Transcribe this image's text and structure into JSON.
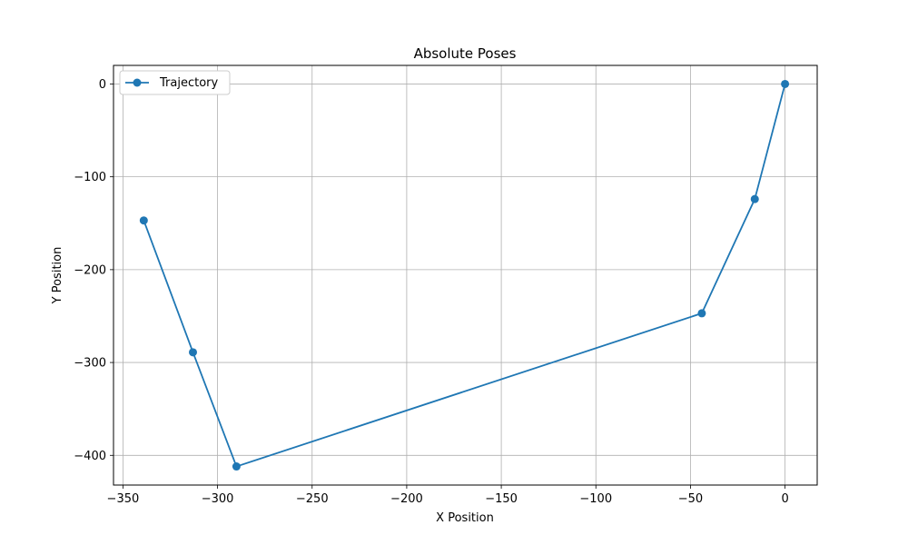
{
  "chart_data": {
    "type": "line",
    "title": "Absolute Poses",
    "xlabel": "X Position",
    "ylabel": "Y Position",
    "xlim": [
      -355,
      17
    ],
    "ylim": [
      -432,
      20
    ],
    "xticks": [
      -350,
      -300,
      -250,
      -200,
      -150,
      -100,
      -50,
      0
    ],
    "yticks": [
      0,
      -100,
      -200,
      -300,
      -400
    ],
    "grid": true,
    "legend_position": "upper-left",
    "series": [
      {
        "name": "Trajectory",
        "color": "#1f77b4",
        "marker": "circle",
        "x": [
          0,
          -16,
          -44,
          -290,
          -313,
          -339
        ],
        "y": [
          0,
          -124,
          -247,
          -412,
          -289,
          -147
        ]
      }
    ]
  }
}
